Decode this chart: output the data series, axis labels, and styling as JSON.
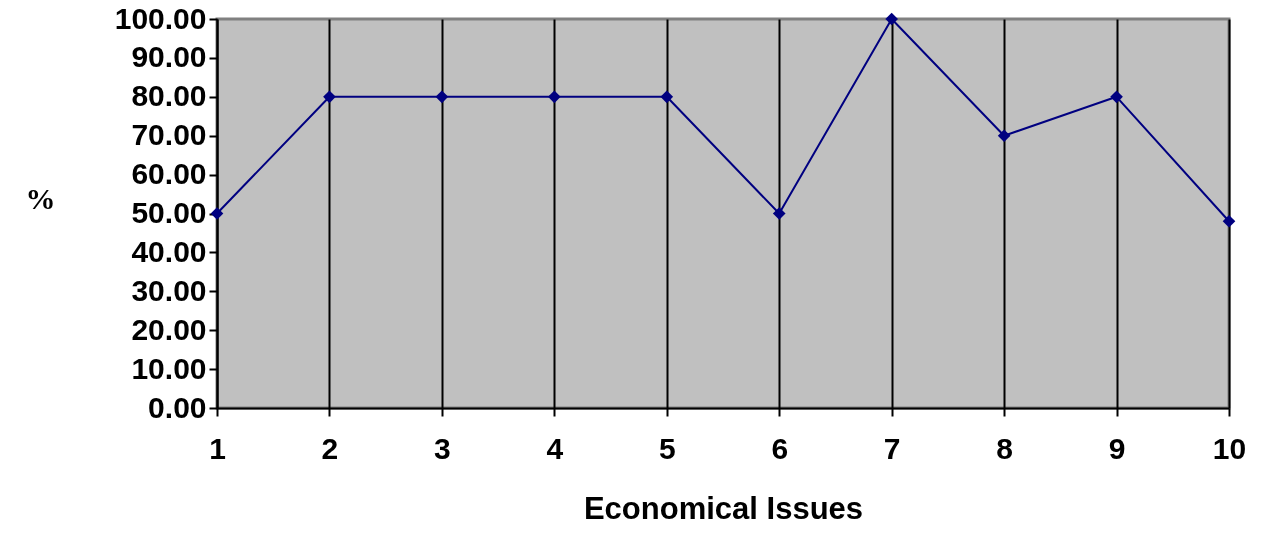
{
  "chart_data": {
    "type": "line",
    "xlabel": "Economical Issues",
    "ylabel": "%",
    "categories": [
      "1",
      "2",
      "3",
      "4",
      "5",
      "6",
      "7",
      "8",
      "9",
      "10"
    ],
    "series": [
      {
        "color": "#000080",
        "values": [
          50,
          80,
          80,
          80,
          80,
          50,
          100,
          70,
          80,
          48
        ]
      }
    ],
    "ylim": [
      0,
      100
    ],
    "yticks": [
      {
        "value": 0,
        "label": "0.00"
      },
      {
        "value": 10,
        "label": "10.00"
      },
      {
        "value": 20,
        "label": "20.00"
      },
      {
        "value": 30,
        "label": "30.00"
      },
      {
        "value": 40,
        "label": "40.00"
      },
      {
        "value": 50,
        "label": "50.00"
      },
      {
        "value": 60,
        "label": "60.00"
      },
      {
        "value": 70,
        "label": "70.00"
      },
      {
        "value": 80,
        "label": "80.00"
      },
      {
        "value": 90,
        "label": "90.00"
      },
      {
        "value": 100,
        "label": "100.00"
      }
    ],
    "grid": "x",
    "legend": false,
    "marker": "diamond",
    "line_style": "solid"
  }
}
